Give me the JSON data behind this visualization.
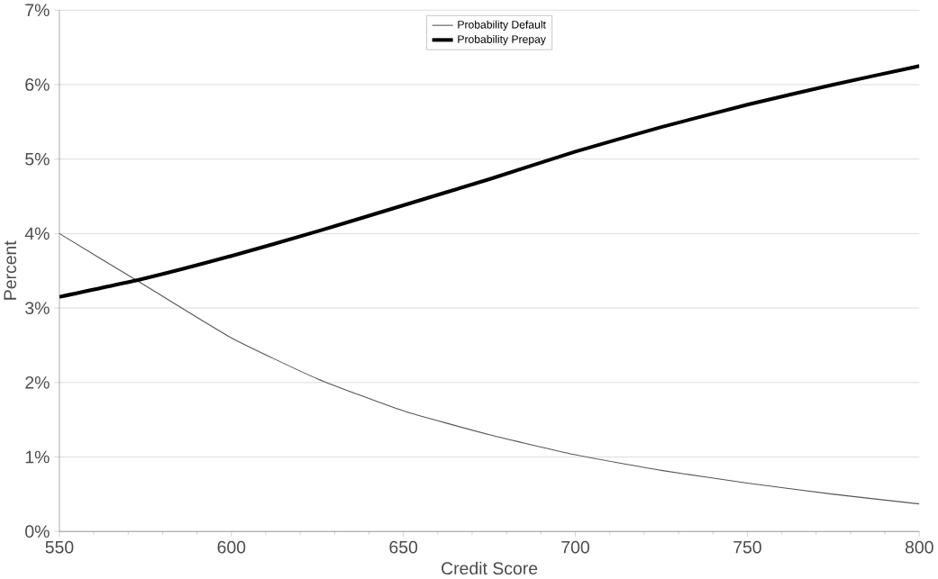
{
  "chart_data": {
    "type": "line",
    "xlabel": "Credit Score",
    "ylabel": "Percent",
    "x": [
      550,
      575,
      600,
      625,
      650,
      675,
      700,
      725,
      750,
      775,
      800
    ],
    "series": [
      {
        "name": "Probability Default",
        "color": "#555555",
        "values": [
          4.0,
          3.3,
          2.6,
          2.05,
          1.62,
          1.3,
          1.03,
          0.82,
          0.65,
          0.5,
          0.37
        ]
      },
      {
        "name": "Probability Prepay",
        "color": "#000000",
        "values": [
          3.15,
          3.4,
          3.7,
          4.03,
          4.38,
          4.73,
          5.1,
          5.43,
          5.73,
          6.0,
          6.25
        ]
      }
    ],
    "xlim": [
      550,
      800
    ],
    "xticks": [
      550,
      600,
      650,
      700,
      750,
      800
    ],
    "ylim": [
      0,
      7
    ],
    "yticks": [
      {
        "value": 0,
        "label": "0%"
      },
      {
        "value": 1,
        "label": "1%"
      },
      {
        "value": 2,
        "label": "2%"
      },
      {
        "value": 3,
        "label": "3%"
      },
      {
        "value": 4,
        "label": "4%"
      },
      {
        "value": 5,
        "label": "5%"
      },
      {
        "value": 6,
        "label": "6%"
      },
      {
        "value": 7,
        "label": "7%"
      }
    ],
    "grid": "y",
    "legend": "top",
    "marker": "none",
    "line_style": "solid"
  }
}
